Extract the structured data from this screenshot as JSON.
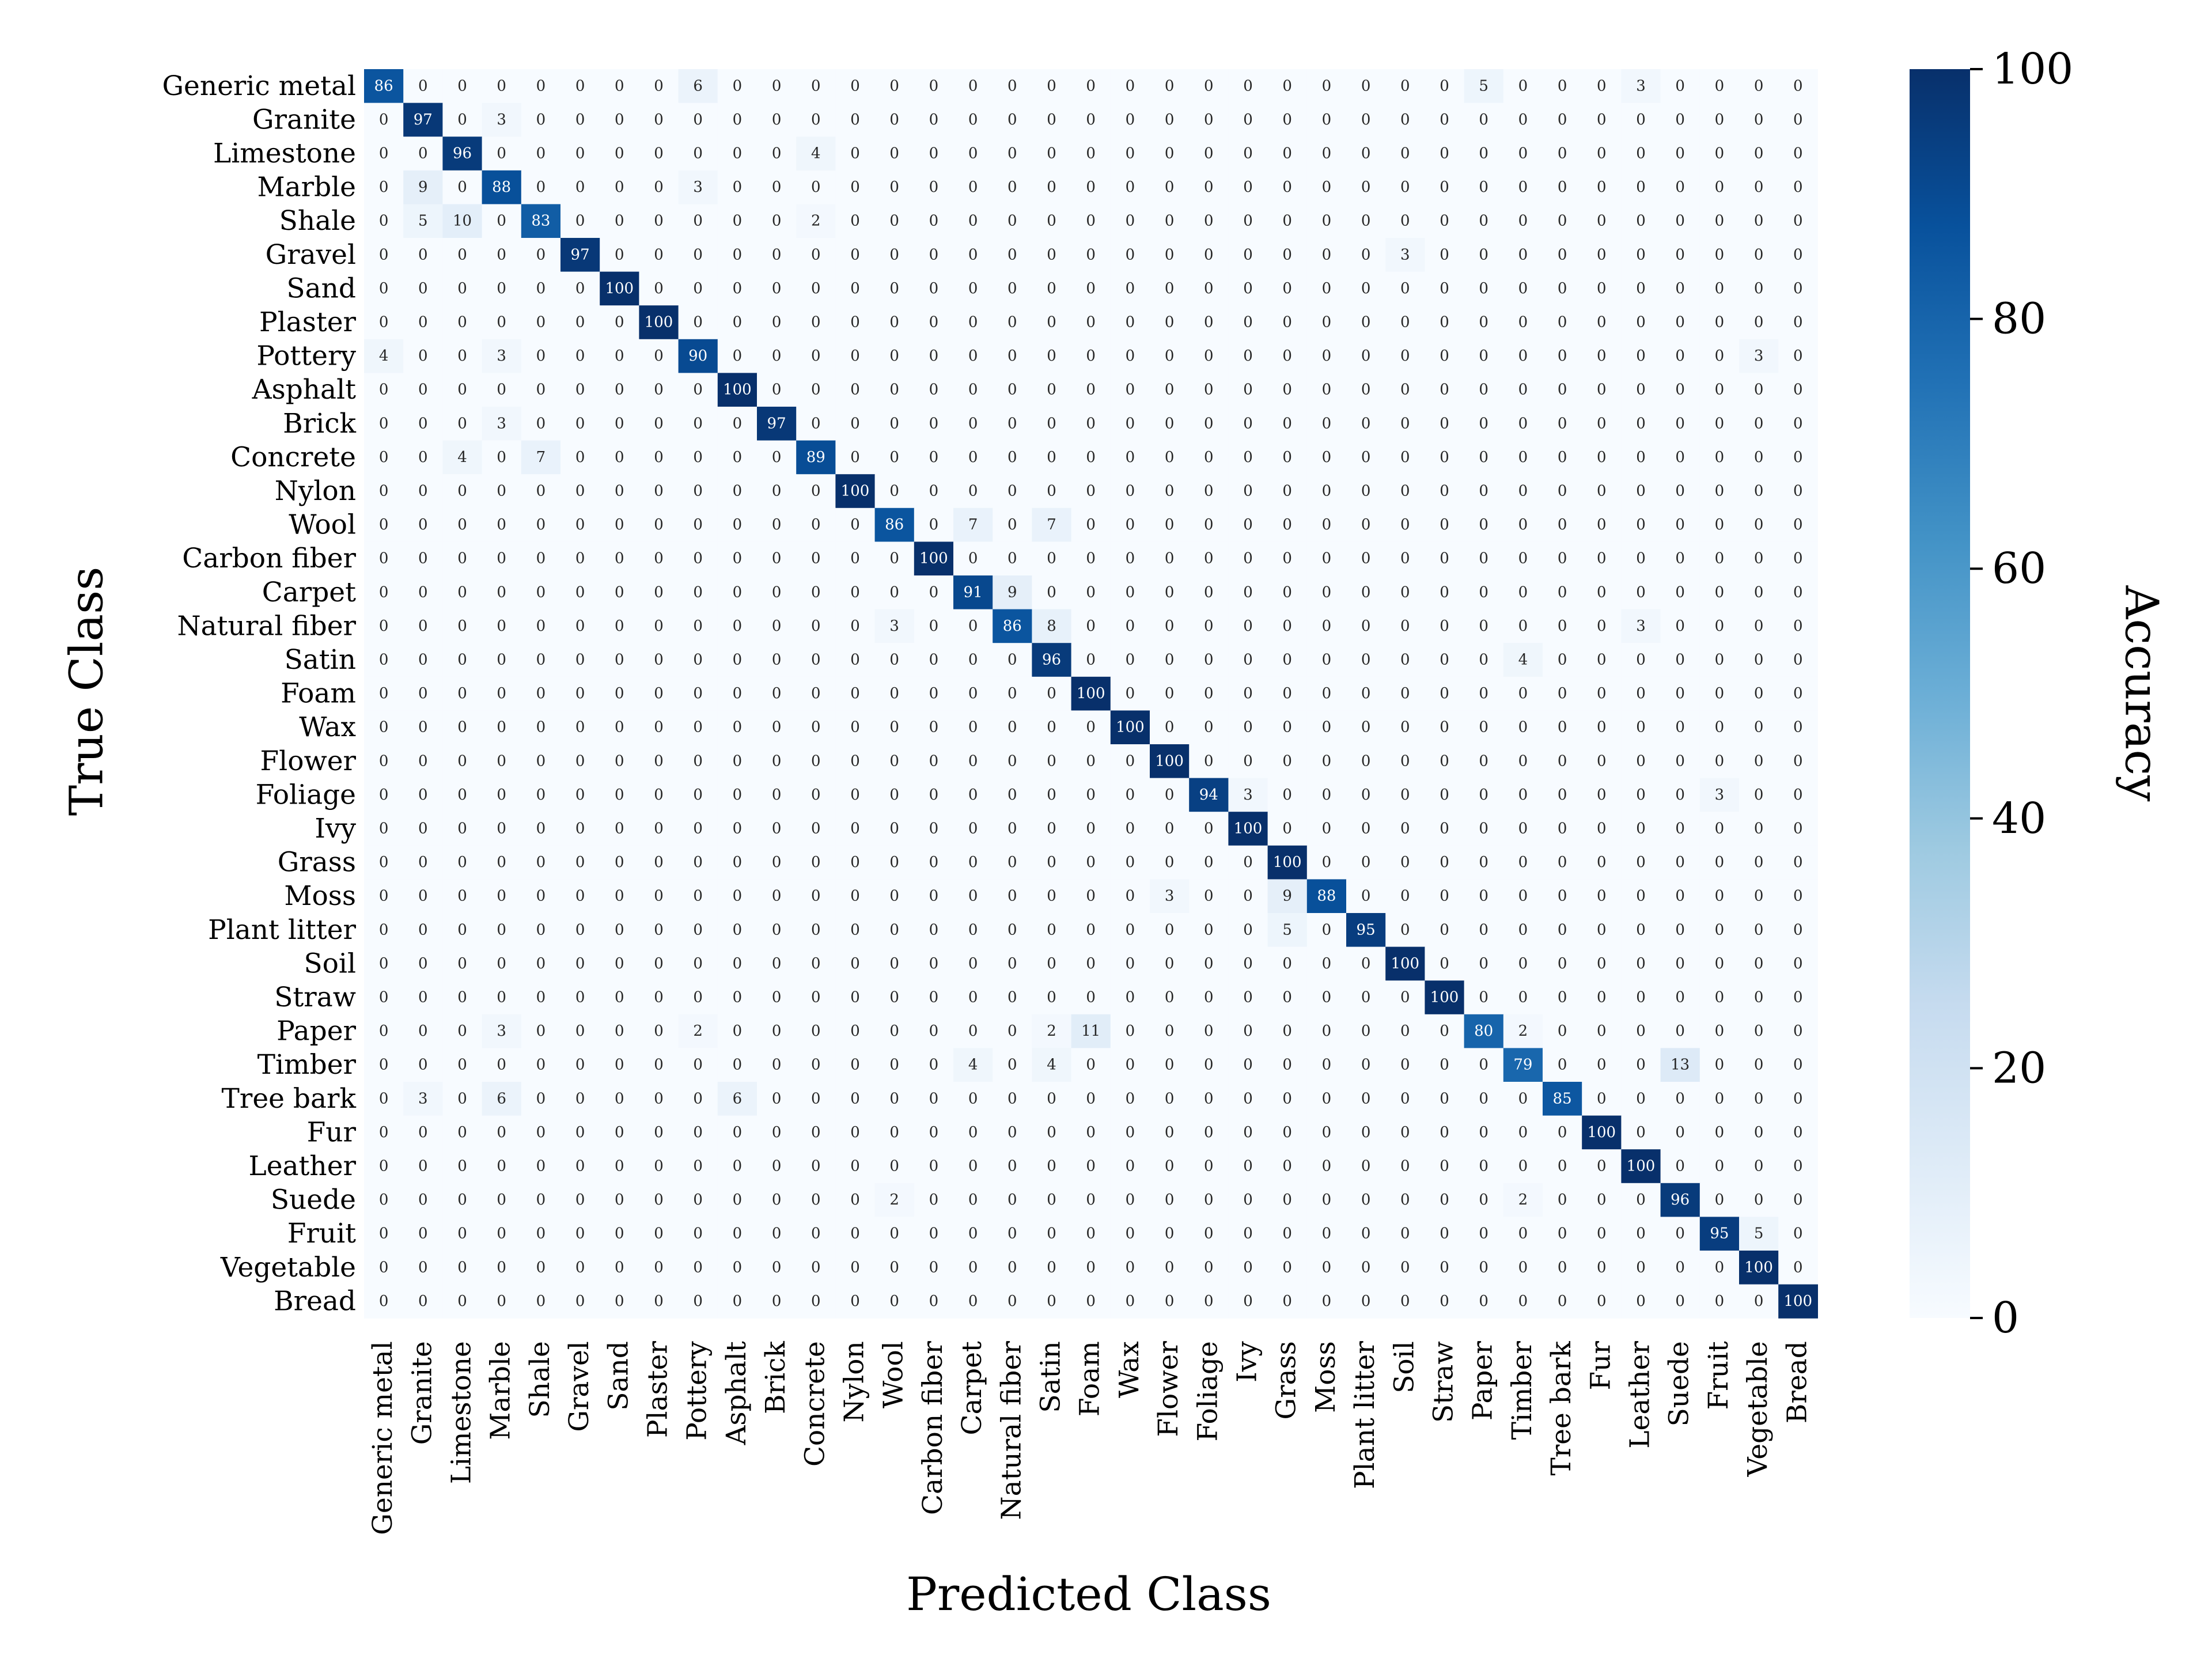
{
  "chart_data": {
    "type": "heatmap",
    "xlabel": "Predicted Class",
    "ylabel": "True Class",
    "colorbar": {
      "label": "Accuracy",
      "range": [
        0,
        100
      ],
      "ticks": [
        0,
        20,
        40,
        60,
        80,
        100
      ],
      "colormap": "Blues"
    },
    "classes": [
      "Generic metal",
      "Granite",
      "Limestone",
      "Marble",
      "Shale",
      "Gravel",
      "Sand",
      "Plaster",
      "Pottery",
      "Asphalt",
      "Brick",
      "Concrete",
      "Nylon",
      "Wool",
      "Carbon fiber",
      "Carpet",
      "Natural fiber",
      "Satin",
      "Foam",
      "Wax",
      "Flower",
      "Foliage",
      "Ivy",
      "Grass",
      "Moss",
      "Plant litter",
      "Soil",
      "Straw",
      "Paper",
      "Timber",
      "Tree bark",
      "Fur",
      "Leather",
      "Suede",
      "Fruit",
      "Vegetable",
      "Bread"
    ],
    "values": [
      [
        86,
        0,
        0,
        0,
        0,
        0,
        0,
        0,
        6,
        0,
        0,
        0,
        0,
        0,
        0,
        0,
        0,
        0,
        0,
        0,
        0,
        0,
        0,
        0,
        0,
        0,
        0,
        0,
        5,
        0,
        0,
        0,
        3,
        0,
        0,
        0,
        0
      ],
      [
        0,
        97,
        0,
        3,
        0,
        0,
        0,
        0,
        0,
        0,
        0,
        0,
        0,
        0,
        0,
        0,
        0,
        0,
        0,
        0,
        0,
        0,
        0,
        0,
        0,
        0,
        0,
        0,
        0,
        0,
        0,
        0,
        0,
        0,
        0,
        0,
        0
      ],
      [
        0,
        0,
        96,
        0,
        0,
        0,
        0,
        0,
        0,
        0,
        0,
        4,
        0,
        0,
        0,
        0,
        0,
        0,
        0,
        0,
        0,
        0,
        0,
        0,
        0,
        0,
        0,
        0,
        0,
        0,
        0,
        0,
        0,
        0,
        0,
        0,
        0
      ],
      [
        0,
        9,
        0,
        88,
        0,
        0,
        0,
        0,
        3,
        0,
        0,
        0,
        0,
        0,
        0,
        0,
        0,
        0,
        0,
        0,
        0,
        0,
        0,
        0,
        0,
        0,
        0,
        0,
        0,
        0,
        0,
        0,
        0,
        0,
        0,
        0,
        0
      ],
      [
        0,
        5,
        10,
        0,
        83,
        0,
        0,
        0,
        0,
        0,
        0,
        2,
        0,
        0,
        0,
        0,
        0,
        0,
        0,
        0,
        0,
        0,
        0,
        0,
        0,
        0,
        0,
        0,
        0,
        0,
        0,
        0,
        0,
        0,
        0,
        0,
        0
      ],
      [
        0,
        0,
        0,
        0,
        0,
        97,
        0,
        0,
        0,
        0,
        0,
        0,
        0,
        0,
        0,
        0,
        0,
        0,
        0,
        0,
        0,
        0,
        0,
        0,
        0,
        0,
        3,
        0,
        0,
        0,
        0,
        0,
        0,
        0,
        0,
        0,
        0
      ],
      [
        0,
        0,
        0,
        0,
        0,
        0,
        100,
        0,
        0,
        0,
        0,
        0,
        0,
        0,
        0,
        0,
        0,
        0,
        0,
        0,
        0,
        0,
        0,
        0,
        0,
        0,
        0,
        0,
        0,
        0,
        0,
        0,
        0,
        0,
        0,
        0,
        0
      ],
      [
        0,
        0,
        0,
        0,
        0,
        0,
        0,
        100,
        0,
        0,
        0,
        0,
        0,
        0,
        0,
        0,
        0,
        0,
        0,
        0,
        0,
        0,
        0,
        0,
        0,
        0,
        0,
        0,
        0,
        0,
        0,
        0,
        0,
        0,
        0,
        0,
        0
      ],
      [
        4,
        0,
        0,
        3,
        0,
        0,
        0,
        0,
        90,
        0,
        0,
        0,
        0,
        0,
        0,
        0,
        0,
        0,
        0,
        0,
        0,
        0,
        0,
        0,
        0,
        0,
        0,
        0,
        0,
        0,
        0,
        0,
        0,
        0,
        0,
        3,
        0
      ],
      [
        0,
        0,
        0,
        0,
        0,
        0,
        0,
        0,
        0,
        100,
        0,
        0,
        0,
        0,
        0,
        0,
        0,
        0,
        0,
        0,
        0,
        0,
        0,
        0,
        0,
        0,
        0,
        0,
        0,
        0,
        0,
        0,
        0,
        0,
        0,
        0,
        0
      ],
      [
        0,
        0,
        0,
        3,
        0,
        0,
        0,
        0,
        0,
        0,
        97,
        0,
        0,
        0,
        0,
        0,
        0,
        0,
        0,
        0,
        0,
        0,
        0,
        0,
        0,
        0,
        0,
        0,
        0,
        0,
        0,
        0,
        0,
        0,
        0,
        0,
        0
      ],
      [
        0,
        0,
        4,
        0,
        7,
        0,
        0,
        0,
        0,
        0,
        0,
        89,
        0,
        0,
        0,
        0,
        0,
        0,
        0,
        0,
        0,
        0,
        0,
        0,
        0,
        0,
        0,
        0,
        0,
        0,
        0,
        0,
        0,
        0,
        0,
        0,
        0
      ],
      [
        0,
        0,
        0,
        0,
        0,
        0,
        0,
        0,
        0,
        0,
        0,
        0,
        100,
        0,
        0,
        0,
        0,
        0,
        0,
        0,
        0,
        0,
        0,
        0,
        0,
        0,
        0,
        0,
        0,
        0,
        0,
        0,
        0,
        0,
        0,
        0,
        0
      ],
      [
        0,
        0,
        0,
        0,
        0,
        0,
        0,
        0,
        0,
        0,
        0,
        0,
        0,
        86,
        0,
        7,
        0,
        7,
        0,
        0,
        0,
        0,
        0,
        0,
        0,
        0,
        0,
        0,
        0,
        0,
        0,
        0,
        0,
        0,
        0,
        0,
        0
      ],
      [
        0,
        0,
        0,
        0,
        0,
        0,
        0,
        0,
        0,
        0,
        0,
        0,
        0,
        0,
        100,
        0,
        0,
        0,
        0,
        0,
        0,
        0,
        0,
        0,
        0,
        0,
        0,
        0,
        0,
        0,
        0,
        0,
        0,
        0,
        0,
        0,
        0
      ],
      [
        0,
        0,
        0,
        0,
        0,
        0,
        0,
        0,
        0,
        0,
        0,
        0,
        0,
        0,
        0,
        91,
        9,
        0,
        0,
        0,
        0,
        0,
        0,
        0,
        0,
        0,
        0,
        0,
        0,
        0,
        0,
        0,
        0,
        0,
        0,
        0,
        0
      ],
      [
        0,
        0,
        0,
        0,
        0,
        0,
        0,
        0,
        0,
        0,
        0,
        0,
        0,
        3,
        0,
        0,
        86,
        8,
        0,
        0,
        0,
        0,
        0,
        0,
        0,
        0,
        0,
        0,
        0,
        0,
        0,
        0,
        3,
        0,
        0,
        0,
        0
      ],
      [
        0,
        0,
        0,
        0,
        0,
        0,
        0,
        0,
        0,
        0,
        0,
        0,
        0,
        0,
        0,
        0,
        0,
        96,
        0,
        0,
        0,
        0,
        0,
        0,
        0,
        0,
        0,
        0,
        0,
        4,
        0,
        0,
        0,
        0,
        0,
        0,
        0
      ],
      [
        0,
        0,
        0,
        0,
        0,
        0,
        0,
        0,
        0,
        0,
        0,
        0,
        0,
        0,
        0,
        0,
        0,
        0,
        100,
        0,
        0,
        0,
        0,
        0,
        0,
        0,
        0,
        0,
        0,
        0,
        0,
        0,
        0,
        0,
        0,
        0,
        0
      ],
      [
        0,
        0,
        0,
        0,
        0,
        0,
        0,
        0,
        0,
        0,
        0,
        0,
        0,
        0,
        0,
        0,
        0,
        0,
        0,
        100,
        0,
        0,
        0,
        0,
        0,
        0,
        0,
        0,
        0,
        0,
        0,
        0,
        0,
        0,
        0,
        0,
        0
      ],
      [
        0,
        0,
        0,
        0,
        0,
        0,
        0,
        0,
        0,
        0,
        0,
        0,
        0,
        0,
        0,
        0,
        0,
        0,
        0,
        0,
        100,
        0,
        0,
        0,
        0,
        0,
        0,
        0,
        0,
        0,
        0,
        0,
        0,
        0,
        0,
        0,
        0
      ],
      [
        0,
        0,
        0,
        0,
        0,
        0,
        0,
        0,
        0,
        0,
        0,
        0,
        0,
        0,
        0,
        0,
        0,
        0,
        0,
        0,
        0,
        94,
        3,
        0,
        0,
        0,
        0,
        0,
        0,
        0,
        0,
        0,
        0,
        0,
        3,
        0,
        0
      ],
      [
        0,
        0,
        0,
        0,
        0,
        0,
        0,
        0,
        0,
        0,
        0,
        0,
        0,
        0,
        0,
        0,
        0,
        0,
        0,
        0,
        0,
        0,
        100,
        0,
        0,
        0,
        0,
        0,
        0,
        0,
        0,
        0,
        0,
        0,
        0,
        0,
        0
      ],
      [
        0,
        0,
        0,
        0,
        0,
        0,
        0,
        0,
        0,
        0,
        0,
        0,
        0,
        0,
        0,
        0,
        0,
        0,
        0,
        0,
        0,
        0,
        0,
        100,
        0,
        0,
        0,
        0,
        0,
        0,
        0,
        0,
        0,
        0,
        0,
        0,
        0
      ],
      [
        0,
        0,
        0,
        0,
        0,
        0,
        0,
        0,
        0,
        0,
        0,
        0,
        0,
        0,
        0,
        0,
        0,
        0,
        0,
        0,
        3,
        0,
        0,
        9,
        88,
        0,
        0,
        0,
        0,
        0,
        0,
        0,
        0,
        0,
        0,
        0,
        0
      ],
      [
        0,
        0,
        0,
        0,
        0,
        0,
        0,
        0,
        0,
        0,
        0,
        0,
        0,
        0,
        0,
        0,
        0,
        0,
        0,
        0,
        0,
        0,
        0,
        5,
        0,
        95,
        0,
        0,
        0,
        0,
        0,
        0,
        0,
        0,
        0,
        0,
        0
      ],
      [
        0,
        0,
        0,
        0,
        0,
        0,
        0,
        0,
        0,
        0,
        0,
        0,
        0,
        0,
        0,
        0,
        0,
        0,
        0,
        0,
        0,
        0,
        0,
        0,
        0,
        0,
        100,
        0,
        0,
        0,
        0,
        0,
        0,
        0,
        0,
        0,
        0
      ],
      [
        0,
        0,
        0,
        0,
        0,
        0,
        0,
        0,
        0,
        0,
        0,
        0,
        0,
        0,
        0,
        0,
        0,
        0,
        0,
        0,
        0,
        0,
        0,
        0,
        0,
        0,
        0,
        100,
        0,
        0,
        0,
        0,
        0,
        0,
        0,
        0,
        0
      ],
      [
        0,
        0,
        0,
        3,
        0,
        0,
        0,
        0,
        2,
        0,
        0,
        0,
        0,
        0,
        0,
        0,
        0,
        2,
        11,
        0,
        0,
        0,
        0,
        0,
        0,
        0,
        0,
        0,
        80,
        2,
        0,
        0,
        0,
        0,
        0,
        0,
        0
      ],
      [
        0,
        0,
        0,
        0,
        0,
        0,
        0,
        0,
        0,
        0,
        0,
        0,
        0,
        0,
        0,
        4,
        0,
        4,
        0,
        0,
        0,
        0,
        0,
        0,
        0,
        0,
        0,
        0,
        0,
        79,
        0,
        0,
        0,
        13,
        0,
        0,
        0
      ],
      [
        0,
        3,
        0,
        6,
        0,
        0,
        0,
        0,
        0,
        6,
        0,
        0,
        0,
        0,
        0,
        0,
        0,
        0,
        0,
        0,
        0,
        0,
        0,
        0,
        0,
        0,
        0,
        0,
        0,
        0,
        85,
        0,
        0,
        0,
        0,
        0,
        0
      ],
      [
        0,
        0,
        0,
        0,
        0,
        0,
        0,
        0,
        0,
        0,
        0,
        0,
        0,
        0,
        0,
        0,
        0,
        0,
        0,
        0,
        0,
        0,
        0,
        0,
        0,
        0,
        0,
        0,
        0,
        0,
        0,
        100,
        0,
        0,
        0,
        0,
        0
      ],
      [
        0,
        0,
        0,
        0,
        0,
        0,
        0,
        0,
        0,
        0,
        0,
        0,
        0,
        0,
        0,
        0,
        0,
        0,
        0,
        0,
        0,
        0,
        0,
        0,
        0,
        0,
        0,
        0,
        0,
        0,
        0,
        0,
        100,
        0,
        0,
        0,
        0
      ],
      [
        0,
        0,
        0,
        0,
        0,
        0,
        0,
        0,
        0,
        0,
        0,
        0,
        0,
        2,
        0,
        0,
        0,
        0,
        0,
        0,
        0,
        0,
        0,
        0,
        0,
        0,
        0,
        0,
        0,
        2,
        0,
        0,
        0,
        96,
        0,
        0,
        0
      ],
      [
        0,
        0,
        0,
        0,
        0,
        0,
        0,
        0,
        0,
        0,
        0,
        0,
        0,
        0,
        0,
        0,
        0,
        0,
        0,
        0,
        0,
        0,
        0,
        0,
        0,
        0,
        0,
        0,
        0,
        0,
        0,
        0,
        0,
        0,
        95,
        5,
        0
      ],
      [
        0,
        0,
        0,
        0,
        0,
        0,
        0,
        0,
        0,
        0,
        0,
        0,
        0,
        0,
        0,
        0,
        0,
        0,
        0,
        0,
        0,
        0,
        0,
        0,
        0,
        0,
        0,
        0,
        0,
        0,
        0,
        0,
        0,
        0,
        0,
        100,
        0
      ],
      [
        0,
        0,
        0,
        0,
        0,
        0,
        0,
        0,
        0,
        0,
        0,
        0,
        0,
        0,
        0,
        0,
        0,
        0,
        0,
        0,
        0,
        0,
        0,
        0,
        0,
        0,
        0,
        0,
        0,
        0,
        0,
        0,
        0,
        0,
        0,
        0,
        100
      ]
    ]
  }
}
